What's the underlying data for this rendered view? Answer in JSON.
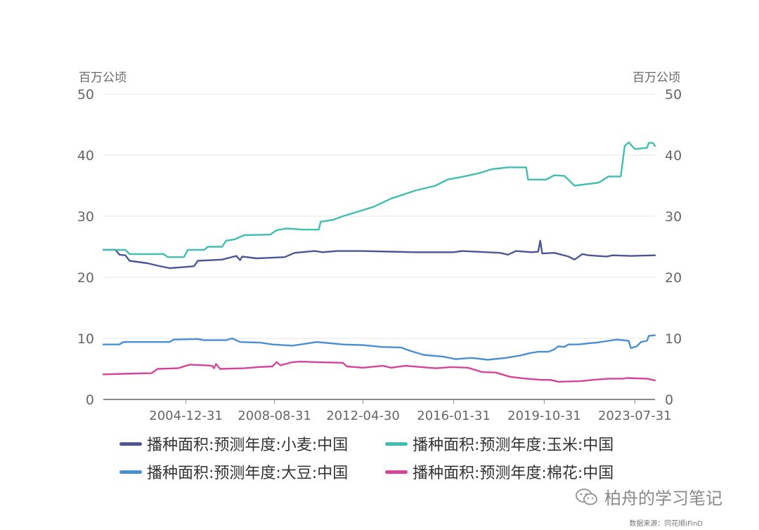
{
  "chart_data": {
    "type": "line",
    "title": "",
    "y_unit_left": "百万公顷",
    "y_unit_right": "百万公顷",
    "ylim": [
      0,
      50
    ],
    "yticks": [
      0,
      10,
      20,
      30,
      40,
      50
    ],
    "xlim": [
      "2001-07-31",
      "2024-05-31"
    ],
    "xticks": [
      "2004-12-31",
      "2008-08-31",
      "2012-04-30",
      "2016-01-31",
      "2019-10-31",
      "2023-07-31"
    ],
    "grid": "horizontal",
    "legend_position": "bottom",
    "series": [
      {
        "name": "播种面积:预测年度:小麦:中国",
        "color": "#4c5596",
        "points": [
          [
            "2001-07-31",
            24.5
          ],
          [
            "2002-01-31",
            24.5
          ],
          [
            "2002-03-31",
            23.7
          ],
          [
            "2002-06-30",
            23.6
          ],
          [
            "2002-08-31",
            22.7
          ],
          [
            "2003-05-31",
            22.3
          ],
          [
            "2003-10-31",
            21.9
          ],
          [
            "2004-04-30",
            21.5
          ],
          [
            "2005-04-30",
            21.8
          ],
          [
            "2005-06-30",
            22.7
          ],
          [
            "2006-06-30",
            22.9
          ],
          [
            "2007-01-31",
            23.5
          ],
          [
            "2007-03-31",
            22.8
          ],
          [
            "2007-04-30",
            23.4
          ],
          [
            "2007-11-30",
            23.1
          ],
          [
            "2009-01-31",
            23.3
          ],
          [
            "2009-06-30",
            24.0
          ],
          [
            "2010-04-30",
            24.3
          ],
          [
            "2010-08-31",
            24.1
          ],
          [
            "2011-03-31",
            24.3
          ],
          [
            "2012-03-31",
            24.3
          ],
          [
            "2013-06-30",
            24.2
          ],
          [
            "2014-06-30",
            24.1
          ],
          [
            "2016-01-31",
            24.1
          ],
          [
            "2016-05-31",
            24.3
          ],
          [
            "2017-12-31",
            24.0
          ],
          [
            "2018-04-30",
            23.7
          ],
          [
            "2018-08-31",
            24.3
          ],
          [
            "2019-04-30",
            24.1
          ],
          [
            "2019-07-31",
            24.2
          ],
          [
            "2019-08-31",
            26.0
          ],
          [
            "2019-09-30",
            23.9
          ],
          [
            "2020-03-31",
            24.0
          ],
          [
            "2020-10-31",
            23.4
          ],
          [
            "2021-01-31",
            22.9
          ],
          [
            "2021-05-31",
            23.8
          ],
          [
            "2021-08-31",
            23.6
          ],
          [
            "2022-05-31",
            23.4
          ],
          [
            "2022-08-31",
            23.6
          ],
          [
            "2023-05-31",
            23.5
          ],
          [
            "2024-05-31",
            23.6
          ]
        ]
      },
      {
        "name": "播种面积:预测年度:玉米:中国",
        "color": "#3fbfb1",
        "points": [
          [
            "2001-07-31",
            24.5
          ],
          [
            "2002-06-30",
            24.5
          ],
          [
            "2002-08-31",
            23.8
          ],
          [
            "2004-01-31",
            23.8
          ],
          [
            "2004-03-31",
            23.3
          ],
          [
            "2004-11-30",
            23.3
          ],
          [
            "2005-01-31",
            24.5
          ],
          [
            "2005-09-30",
            24.5
          ],
          [
            "2005-11-30",
            25.0
          ],
          [
            "2006-06-30",
            25.0
          ],
          [
            "2006-08-31",
            26.0
          ],
          [
            "2006-12-31",
            26.2
          ],
          [
            "2007-05-31",
            26.9
          ],
          [
            "2008-06-30",
            27.0
          ],
          [
            "2008-09-30",
            27.7
          ],
          [
            "2009-02-28",
            28.0
          ],
          [
            "2009-10-31",
            27.8
          ],
          [
            "2010-06-30",
            27.8
          ],
          [
            "2010-07-31",
            29.1
          ],
          [
            "2011-01-31",
            29.4
          ],
          [
            "2011-06-30",
            30.0
          ],
          [
            "2012-01-31",
            30.7
          ],
          [
            "2012-09-30",
            31.5
          ],
          [
            "2013-06-30",
            32.9
          ],
          [
            "2014-06-30",
            34.2
          ],
          [
            "2015-04-30",
            35.0
          ],
          [
            "2015-10-31",
            36.0
          ],
          [
            "2016-06-30",
            36.5
          ],
          [
            "2017-01-31",
            37.0
          ],
          [
            "2017-08-31",
            37.7
          ],
          [
            "2018-04-30",
            38.0
          ],
          [
            "2019-01-31",
            38.0
          ],
          [
            "2019-02-28",
            36.0
          ],
          [
            "2019-11-30",
            36.0
          ],
          [
            "2020-03-31",
            36.7
          ],
          [
            "2020-08-31",
            36.6
          ],
          [
            "2021-01-31",
            35.0
          ],
          [
            "2022-01-31",
            35.5
          ],
          [
            "2022-06-30",
            36.5
          ],
          [
            "2022-12-31",
            36.5
          ],
          [
            "2023-02-28",
            41.5
          ],
          [
            "2023-04-30",
            42.1
          ],
          [
            "2023-07-31",
            41.0
          ],
          [
            "2024-01-31",
            41.2
          ],
          [
            "2024-02-28",
            42.0
          ],
          [
            "2024-04-30",
            42.0
          ],
          [
            "2024-05-31",
            41.5
          ]
        ]
      },
      {
        "name": "播种面积:预测年度:大豆:中国",
        "color": "#4a8fd4",
        "points": [
          [
            "2001-07-31",
            9.0
          ],
          [
            "2002-03-31",
            9.0
          ],
          [
            "2002-05-31",
            9.4
          ],
          [
            "2004-04-30",
            9.4
          ],
          [
            "2004-06-30",
            9.8
          ],
          [
            "2005-06-30",
            9.9
          ],
          [
            "2005-09-30",
            9.7
          ],
          [
            "2006-08-31",
            9.7
          ],
          [
            "2006-11-30",
            10.0
          ],
          [
            "2007-03-31",
            9.4
          ],
          [
            "2008-01-31",
            9.3
          ],
          [
            "2008-07-31",
            9.0
          ],
          [
            "2009-05-31",
            8.8
          ],
          [
            "2010-05-31",
            9.4
          ],
          [
            "2010-12-31",
            9.2
          ],
          [
            "2011-06-30",
            9.0
          ],
          [
            "2012-04-30",
            8.9
          ],
          [
            "2013-01-31",
            8.6
          ],
          [
            "2013-11-30",
            8.5
          ],
          [
            "2014-03-31",
            8.0
          ],
          [
            "2014-10-31",
            7.3
          ],
          [
            "2015-08-31",
            7.0
          ],
          [
            "2016-02-28",
            6.6
          ],
          [
            "2016-10-31",
            6.8
          ],
          [
            "2017-06-30",
            6.5
          ],
          [
            "2018-03-31",
            6.8
          ],
          [
            "2018-10-31",
            7.2
          ],
          [
            "2019-03-31",
            7.6
          ],
          [
            "2019-07-31",
            7.8
          ],
          [
            "2019-12-31",
            7.8
          ],
          [
            "2020-03-31",
            8.2
          ],
          [
            "2020-05-31",
            8.7
          ],
          [
            "2020-08-31",
            8.6
          ],
          [
            "2020-10-31",
            9.0
          ],
          [
            "2021-03-31",
            9.0
          ],
          [
            "2021-08-31",
            9.2
          ],
          [
            "2021-12-31",
            9.3
          ],
          [
            "2022-06-30",
            9.6
          ],
          [
            "2022-10-31",
            9.8
          ],
          [
            "2023-04-30",
            9.6
          ],
          [
            "2023-05-31",
            8.4
          ],
          [
            "2023-08-31",
            8.7
          ],
          [
            "2023-10-31",
            9.4
          ],
          [
            "2024-01-31",
            9.6
          ],
          [
            "2024-02-28",
            10.4
          ],
          [
            "2024-05-31",
            10.5
          ]
        ]
      },
      {
        "name": "播种面积:预测年度:棉花:中国",
        "color": "#d6449a",
        "points": [
          [
            "2001-07-31",
            4.1
          ],
          [
            "2002-05-31",
            4.2
          ],
          [
            "2003-07-31",
            4.3
          ],
          [
            "2003-10-31",
            5.0
          ],
          [
            "2004-08-31",
            5.1
          ],
          [
            "2005-02-28",
            5.7
          ],
          [
            "2005-09-30",
            5.6
          ],
          [
            "2006-01-31",
            5.5
          ],
          [
            "2006-02-28",
            5.1
          ],
          [
            "2006-03-31",
            5.8
          ],
          [
            "2006-05-31",
            5.0
          ],
          [
            "2007-05-31",
            5.1
          ],
          [
            "2007-12-31",
            5.3
          ],
          [
            "2008-07-31",
            5.4
          ],
          [
            "2008-09-30",
            6.1
          ],
          [
            "2008-11-30",
            5.6
          ],
          [
            "2009-05-31",
            6.1
          ],
          [
            "2009-09-30",
            6.2
          ],
          [
            "2010-05-31",
            6.1
          ],
          [
            "2011-06-30",
            6.0
          ],
          [
            "2011-08-31",
            5.4
          ],
          [
            "2012-04-30",
            5.2
          ],
          [
            "2013-02-28",
            5.5
          ],
          [
            "2013-06-30",
            5.2
          ],
          [
            "2014-01-31",
            5.5
          ],
          [
            "2015-04-30",
            5.1
          ],
          [
            "2015-12-31",
            5.3
          ],
          [
            "2016-08-31",
            5.2
          ],
          [
            "2017-03-31",
            4.5
          ],
          [
            "2017-10-31",
            4.4
          ],
          [
            "2018-05-31",
            3.7
          ],
          [
            "2019-01-31",
            3.4
          ],
          [
            "2019-09-30",
            3.2
          ],
          [
            "2020-01-31",
            3.2
          ],
          [
            "2020-05-31",
            2.9
          ],
          [
            "2021-04-30",
            3.0
          ],
          [
            "2021-10-31",
            3.2
          ],
          [
            "2022-06-30",
            3.4
          ],
          [
            "2023-01-31",
            3.4
          ],
          [
            "2023-03-31",
            3.5
          ],
          [
            "2024-01-31",
            3.4
          ],
          [
            "2024-04-30",
            3.2
          ],
          [
            "2024-05-31",
            3.1
          ]
        ]
      }
    ]
  },
  "watermark": {
    "text": "柏舟的学习笔记",
    "icon": "wechat-icon"
  },
  "source": {
    "text": "数据来源：同花顺iFinD"
  }
}
